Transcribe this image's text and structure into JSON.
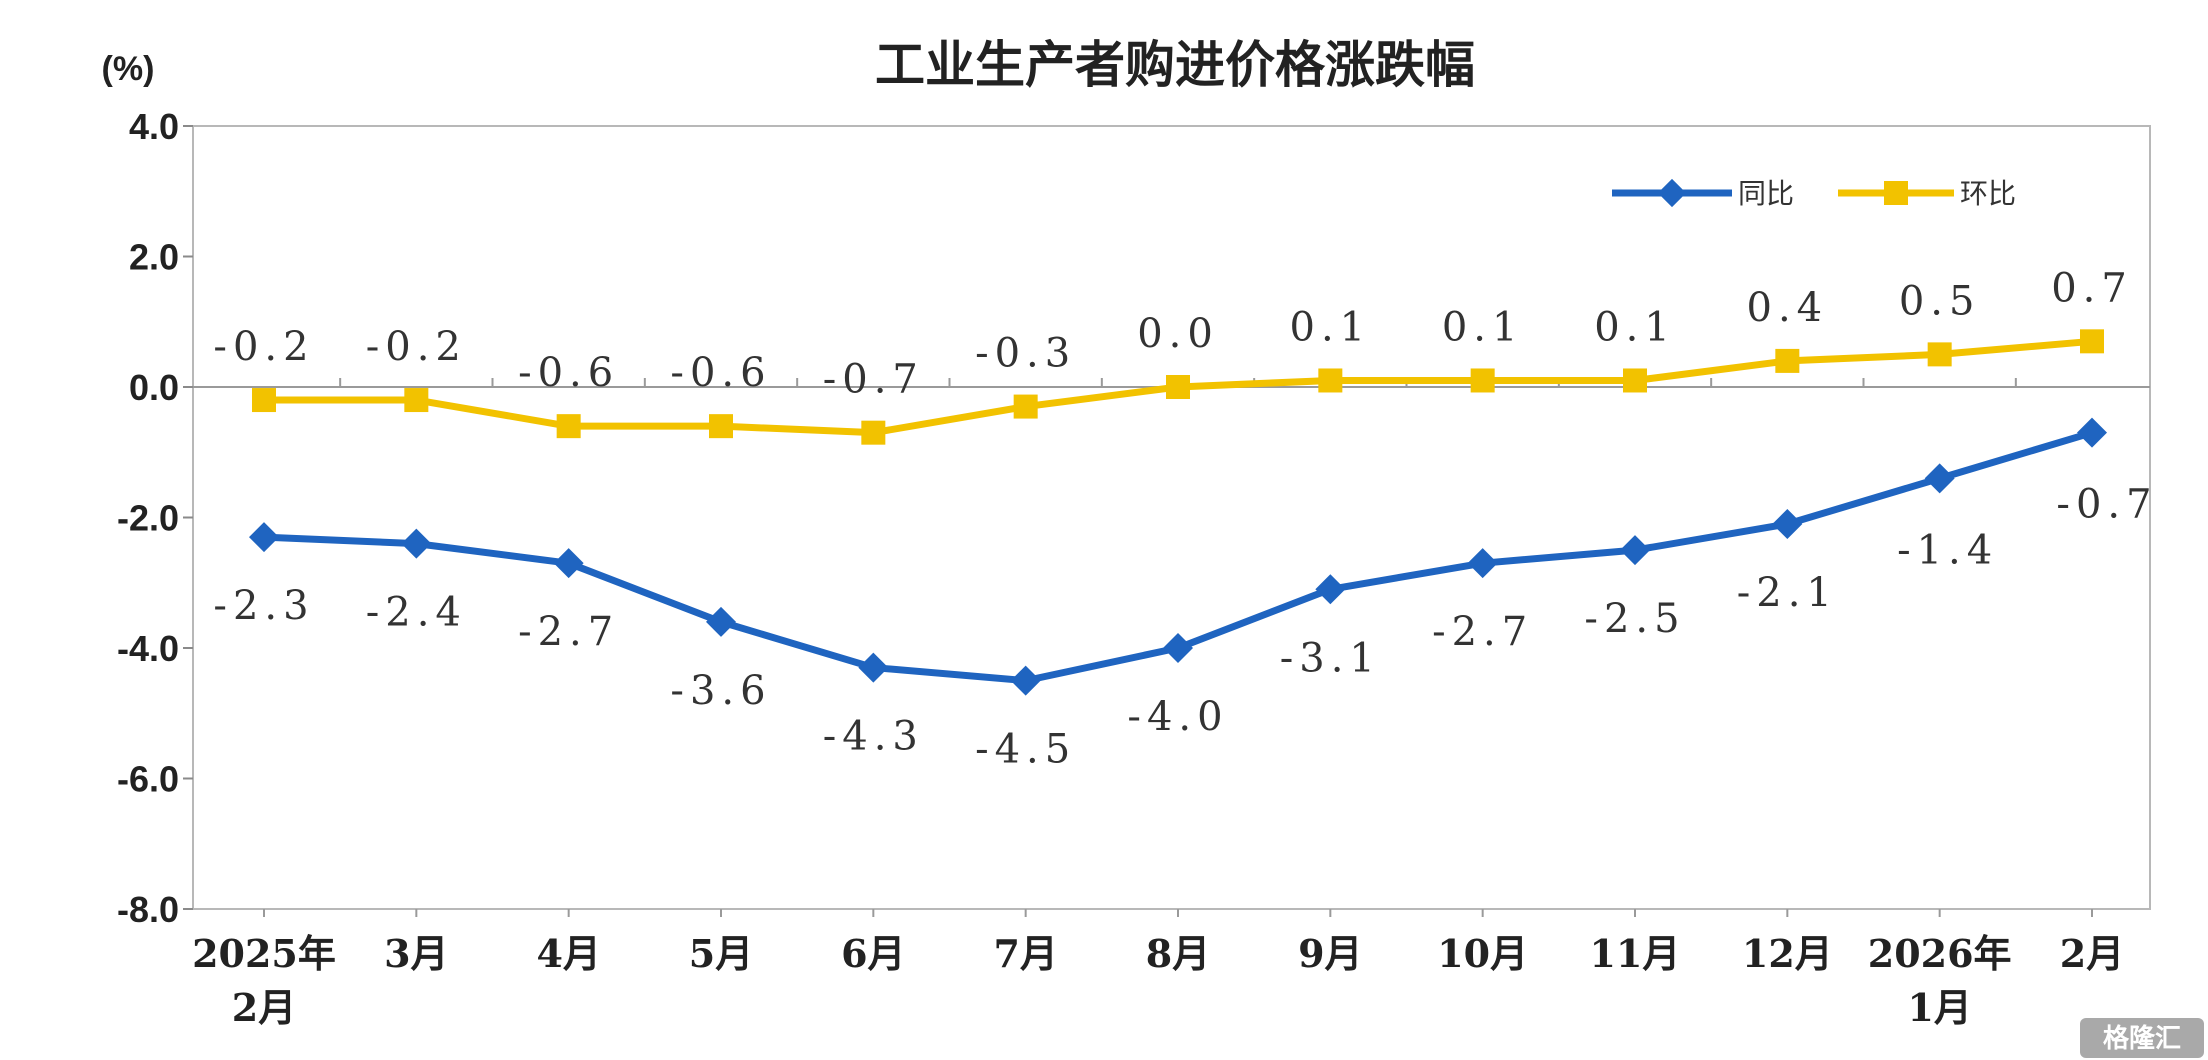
{
  "chart_data": {
    "type": "line",
    "title": "工业生产者购进价格涨跌幅",
    "unit": "(%)",
    "ylim": [
      -8.0,
      4.0
    ],
    "yticks": [
      "4.0",
      "2.0",
      "0.0",
      "-2.0",
      "-4.0",
      "-6.0",
      "-8.0"
    ],
    "ytick_values": [
      4,
      2,
      0,
      -2,
      -4,
      -6,
      -8
    ],
    "categories": [
      [
        "2025年",
        "2月"
      ],
      [
        "3月"
      ],
      [
        "4月"
      ],
      [
        "5月"
      ],
      [
        "6月"
      ],
      [
        "7月"
      ],
      [
        "8月"
      ],
      [
        "9月"
      ],
      [
        "10月"
      ],
      [
        "11月"
      ],
      [
        "12月"
      ],
      [
        "2026年",
        "1月"
      ],
      [
        "2月"
      ]
    ],
    "series": [
      {
        "name": "同比",
        "color": "#1F64C0",
        "marker": "diamond",
        "values": [
          -2.3,
          -2.4,
          -2.7,
          -3.6,
          -4.3,
          -4.5,
          -4.0,
          -3.1,
          -2.7,
          -2.5,
          -2.1,
          -1.4,
          -0.7
        ],
        "labels": [
          "-2.3",
          "-2.4",
          "-2.7",
          "-3.6",
          "-4.3",
          "-4.5",
          "-4.0",
          "-3.1",
          "-2.7",
          "-2.5",
          "-2.1",
          "-1.4",
          "-0.7"
        ]
      },
      {
        "name": "环比",
        "color": "#F2C200",
        "marker": "square",
        "values": [
          -0.2,
          -0.2,
          -0.6,
          -0.6,
          -0.7,
          -0.3,
          0.0,
          0.1,
          0.1,
          0.1,
          0.4,
          0.5,
          0.7
        ],
        "labels": [
          "-0.2",
          "-0.2",
          "-0.6",
          "-0.6",
          "-0.7",
          "-0.3",
          "0.0",
          "0.1",
          "0.1",
          "0.1",
          "0.4",
          "0.5",
          "0.7"
        ]
      }
    ],
    "legend_position": "top-right",
    "grid": false,
    "zero_line": true
  },
  "watermark": {
    "text": "格隆汇"
  }
}
